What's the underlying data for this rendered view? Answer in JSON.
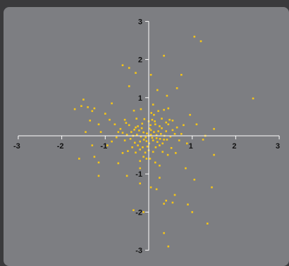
{
  "colors": {
    "background": "#3a3a3c",
    "panel": "#7d7e82",
    "axis": "#ffffff",
    "points": "#f5c518",
    "tick_labels": "#111111"
  },
  "chart_data": {
    "type": "scatter",
    "title": "",
    "xlabel": "",
    "ylabel": "",
    "xlim": [
      -3,
      3
    ],
    "ylim": [
      -3,
      3
    ],
    "x_ticks": [
      -3,
      -2,
      -1,
      1,
      2,
      3
    ],
    "y_ticks": [
      3,
      2,
      1,
      -1,
      -2,
      -3
    ],
    "x_tick_labels": [
      "-3",
      "-2",
      "-1",
      "1",
      "2",
      "3"
    ],
    "y_tick_labels": [
      "3",
      "2",
      "1",
      "-1",
      "-2",
      "-3"
    ],
    "grid": false,
    "axes_through_origin": true,
    "marker": "small-square",
    "series": [
      {
        "points": [
          [
            0.0,
            0.0
          ],
          [
            0.05,
            0.03
          ],
          [
            -0.04,
            0.06
          ],
          [
            0.08,
            -0.05
          ],
          [
            -0.07,
            -0.04
          ],
          [
            0.12,
            0.1
          ],
          [
            -0.12,
            0.09
          ],
          [
            0.1,
            -0.12
          ],
          [
            -0.11,
            -0.1
          ],
          [
            0.18,
            0.02
          ],
          [
            -0.18,
            -0.02
          ],
          [
            0.02,
            0.19
          ],
          [
            0.01,
            -0.2
          ],
          [
            0.22,
            0.12
          ],
          [
            -0.22,
            0.14
          ],
          [
            0.2,
            -0.16
          ],
          [
            -0.2,
            -0.15
          ],
          [
            0.28,
            0.05
          ],
          [
            -0.27,
            0.03
          ],
          [
            0.04,
            0.28
          ],
          [
            -0.03,
            -0.28
          ],
          [
            0.3,
            0.2
          ],
          [
            -0.3,
            0.22
          ],
          [
            0.32,
            -0.2
          ],
          [
            -0.32,
            -0.18
          ],
          [
            0.15,
            0.3
          ],
          [
            -0.15,
            0.32
          ],
          [
            0.16,
            -0.3
          ],
          [
            -0.14,
            -0.3
          ],
          [
            0.36,
            0.0
          ],
          [
            -0.36,
            0.0
          ],
          [
            0.0,
            0.38
          ],
          [
            0.0,
            -0.38
          ],
          [
            0.25,
            0.25
          ],
          [
            -0.25,
            0.25
          ],
          [
            0.25,
            -0.25
          ],
          [
            -0.25,
            -0.25
          ],
          [
            0.4,
            0.12
          ],
          [
            -0.4,
            0.1
          ],
          [
            0.42,
            -0.1
          ],
          [
            -0.42,
            -0.08
          ],
          [
            0.08,
            0.42
          ],
          [
            -0.1,
            0.44
          ],
          [
            0.1,
            -0.42
          ],
          [
            -0.08,
            -0.44
          ],
          [
            0.45,
            0.3
          ],
          [
            -0.45,
            0.28
          ],
          [
            0.5,
            -0.02
          ],
          [
            -0.5,
            0.03
          ],
          [
            0.3,
            0.45
          ],
          [
            -0.28,
            0.45
          ],
          [
            0.32,
            -0.42
          ],
          [
            -0.3,
            -0.44
          ],
          [
            0.55,
            0.15
          ],
          [
            -0.55,
            -0.12
          ],
          [
            0.12,
            0.55
          ],
          [
            -0.12,
            -0.55
          ],
          [
            0.6,
            0.05
          ],
          [
            -0.6,
            0.08
          ],
          [
            0.06,
            0.6
          ],
          [
            0.03,
            -0.6
          ],
          [
            0.48,
            0.42
          ],
          [
            -0.48,
            -0.4
          ],
          [
            0.52,
            -0.32
          ],
          [
            -0.52,
            0.34
          ],
          [
            0.65,
            0.22
          ],
          [
            -0.65,
            0.18
          ],
          [
            0.22,
            0.65
          ],
          [
            -0.2,
            -0.66
          ],
          [
            0.7,
            -0.12
          ],
          [
            -0.7,
            0.1
          ],
          [
            0.15,
            -0.7
          ],
          [
            -0.18,
            0.7
          ],
          [
            0.75,
            0.05
          ],
          [
            -0.74,
            -0.04
          ],
          [
            0.35,
            0.68
          ],
          [
            -0.34,
            0.66
          ],
          [
            0.62,
            -0.45
          ],
          [
            -0.6,
            -0.45
          ],
          [
            0.8,
            0.28
          ],
          [
            -0.78,
            0.3
          ],
          [
            0.25,
            -0.78
          ],
          [
            0.1,
            0.82
          ],
          [
            -0.85,
            -0.15
          ],
          [
            0.88,
            -0.2
          ],
          [
            -0.2,
            -0.85
          ],
          [
            0.05,
            0.15
          ],
          [
            0.18,
            -0.06
          ],
          [
            -0.16,
            0.2
          ],
          [
            0.26,
            -0.08
          ],
          [
            -0.05,
            -0.14
          ],
          [
            0.35,
            -0.1
          ],
          [
            -0.33,
            0.16
          ],
          [
            0.14,
            0.38
          ],
          [
            -0.2,
            -0.36
          ],
          [
            0.4,
            0.35
          ],
          [
            -0.38,
            -0.3
          ],
          [
            0.55,
            0.4
          ],
          [
            -0.55,
            0.42
          ],
          [
            0.44,
            -0.5
          ],
          [
            -1.5,
            0.95
          ],
          [
            -1.4,
            0.75
          ],
          [
            -1.25,
            0.72
          ],
          [
            -1.55,
            0.78
          ],
          [
            -1.3,
            0.65
          ],
          [
            -1.7,
            0.7
          ],
          [
            -1.35,
            0.4
          ],
          [
            -1.0,
            0.58
          ],
          [
            -0.9,
            0.42
          ],
          [
            -1.15,
            0.3
          ],
          [
            -1.45,
            0.1
          ],
          [
            -0.6,
            1.85
          ],
          [
            -0.45,
            1.78
          ],
          [
            -0.3,
            1.65
          ],
          [
            0.35,
            2.1
          ],
          [
            0.05,
            1.6
          ],
          [
            -0.45,
            1.3
          ],
          [
            0.75,
            1.6
          ],
          [
            0.65,
            1.25
          ],
          [
            0.45,
            0.72
          ],
          [
            1.05,
            2.6
          ],
          [
            1.2,
            2.48
          ],
          [
            0.42,
            1.05
          ],
          [
            2.4,
            0.98
          ],
          [
            1.5,
            0.18
          ],
          [
            1.25,
            -0.1
          ],
          [
            -1.3,
            -0.25
          ],
          [
            -1.6,
            -0.6
          ],
          [
            -1.25,
            -0.55
          ],
          [
            -1.15,
            -0.7
          ],
          [
            -0.7,
            -0.72
          ],
          [
            -0.05,
            -0.6
          ],
          [
            -0.5,
            -1.05
          ],
          [
            0.25,
            -1.1
          ],
          [
            0.18,
            -1.4
          ],
          [
            0.4,
            -1.7
          ],
          [
            0.6,
            -1.55
          ],
          [
            0.35,
            -1.78
          ],
          [
            0.05,
            -1.35
          ],
          [
            0.35,
            -2.55
          ],
          [
            1.05,
            -1.15
          ],
          [
            1.45,
            -1.35
          ],
          [
            1.0,
            -2.0
          ],
          [
            1.35,
            -2.3
          ],
          [
            0.9,
            -1.8
          ],
          [
            0.45,
            -2.9
          ],
          [
            -1.15,
            -1.05
          ],
          [
            -0.35,
            -1.95
          ],
          [
            -0.12,
            -2.0
          ],
          [
            0.55,
            -1.75
          ],
          [
            1.5,
            -0.5
          ],
          [
            -1.1,
            0.1
          ],
          [
            -0.95,
            -0.25
          ],
          [
            0.95,
            0.55
          ],
          [
            1.1,
            0.3
          ],
          [
            -0.85,
            0.85
          ],
          [
            0.85,
            -0.85
          ],
          [
            0.2,
            1.2
          ],
          [
            -0.2,
            -1.25
          ],
          [
            1.3,
            0.0
          ]
        ]
      }
    ]
  }
}
